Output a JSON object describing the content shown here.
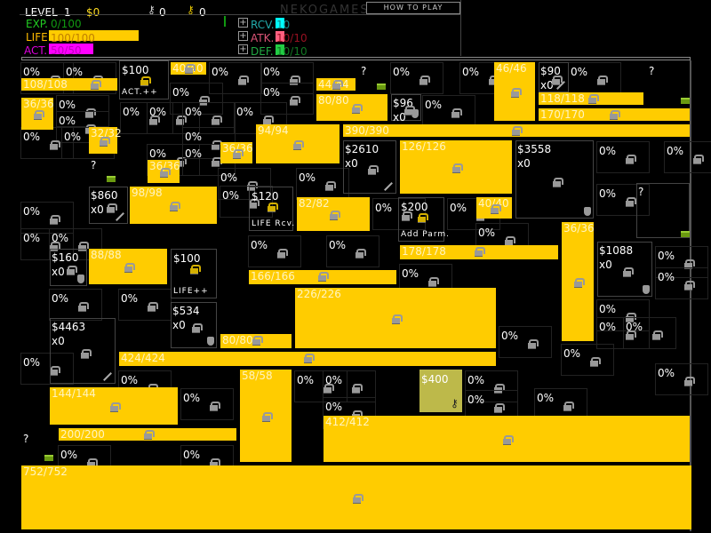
{
  "header": {
    "level_label": "LEVEL",
    "level": "1",
    "money": "$0",
    "silver_keys": "0",
    "gold_keys": "0",
    "brand": "NEKOGAMES",
    "how_to_play": "HOW TO PLAY",
    "exp_label": "EXP.",
    "exp": "0/100",
    "life_label": "LIFE",
    "life": "100/100",
    "life_fill": 1.0,
    "act_label": "ACT.",
    "act": "50/50",
    "act_fill": 1.0,
    "rcv_label": "RCV.",
    "rcv": "10",
    "atk_label": "ATK.",
    "atk": "10/10",
    "def_label": "DEF.",
    "def": "10/10"
  },
  "colors": {
    "life": "#ffcc00",
    "act": "#ff00ff",
    "exp": "#22cc22",
    "rcv": "#00ffff",
    "atk": "#ff6080",
    "def": "#22cc44",
    "block": "#ffcc00",
    "bonus": "#bdb94a"
  },
  "map": {
    "bars": [
      "108/108",
      "36/36",
      "40/40",
      "44/44",
      "80/80",
      "32/32",
      "36/36",
      "36/36",
      "94/94",
      "390/390",
      "46/46",
      "118/118",
      "170/170",
      "126/126",
      "98/98",
      "82/82",
      "40/40",
      "36/36",
      "178/178",
      "88/88",
      "166/166",
      "226/226",
      "80/80",
      "424/424",
      "144/144",
      "58/58",
      "200/200",
      "412/412",
      "752/752"
    ],
    "shops": [
      {
        "price": "$100",
        "perk": "ACT.++"
      },
      {
        "price": "$200",
        "perk": "Add Parm."
      },
      {
        "price": "$120",
        "perk": "LIFE Rcv."
      },
      {
        "price": "$100",
        "perk": "LIFE++"
      }
    ],
    "treasures": [
      {
        "price": "$90",
        "count": "x0",
        "icon": "sword"
      },
      {
        "price": "$96",
        "count": "x0",
        "icon": "shield"
      },
      {
        "price": "$2610",
        "count": "x0",
        "icon": "sword"
      },
      {
        "price": "$3558",
        "count": "x0",
        "icon": "shield"
      },
      {
        "price": "$860",
        "count": "x0",
        "icon": "sword"
      },
      {
        "price": "$160",
        "count": "x0",
        "icon": "shield"
      },
      {
        "price": "$534",
        "count": "x0",
        "icon": "shield"
      },
      {
        "price": "$4463",
        "count": "x0",
        "icon": "sword"
      },
      {
        "price": "$1088",
        "count": "x0",
        "icon": "shield"
      }
    ],
    "unknown": [
      "?",
      "?",
      "?",
      "?",
      "?"
    ],
    "bonus": {
      "price": "$400",
      "icon": "key"
    },
    "percent_label": "0%"
  }
}
